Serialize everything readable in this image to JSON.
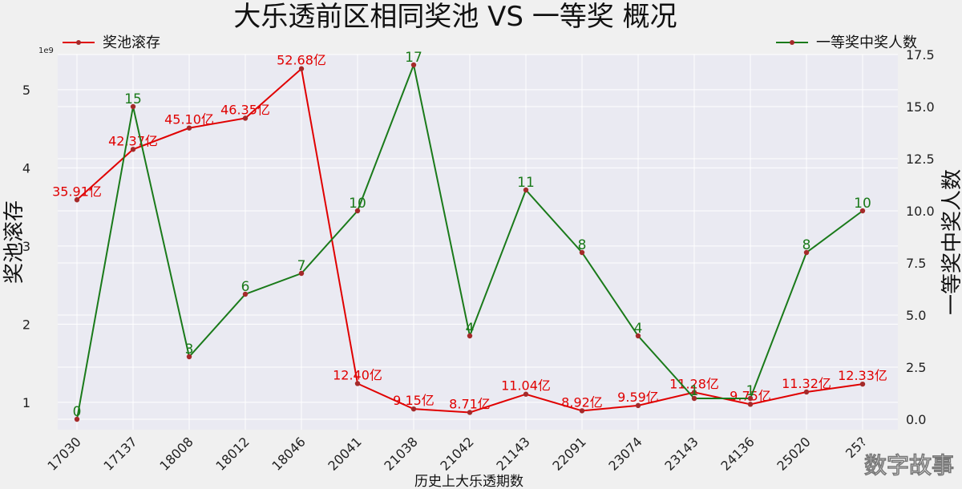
{
  "chart_data": {
    "type": "line",
    "title": "大乐透前区相同奖池 VS 一等奖 概况",
    "xlabel": "历史上大乐透期数",
    "ylabel_left": "奖池滚存",
    "ylabel_right": "一等奖中奖人数",
    "left_scale_note": "1e9",
    "categories": [
      "17030",
      "17137",
      "18008",
      "18012",
      "18046",
      "20041",
      "21038",
      "21042",
      "21143",
      "22091",
      "23074",
      "23143",
      "24136",
      "25020",
      "25?"
    ],
    "ylim_left": [
      0.65,
      5.45
    ],
    "ylim_right": [
      -0.5,
      17.5
    ],
    "left_ticks": [
      1,
      2,
      3,
      4,
      5
    ],
    "right_ticks": [
      "0.0",
      "2.5",
      "5.0",
      "7.5",
      "10.0",
      "12.5",
      "15.0",
      "17.5"
    ],
    "grid": true,
    "series": [
      {
        "name": "奖池滚存",
        "axis": "left",
        "color": "#e00000",
        "values": [
          3.591,
          4.237,
          4.51,
          4.635,
          5.268,
          1.24,
          0.915,
          0.871,
          1.104,
          0.892,
          0.959,
          1.128,
          0.975,
          1.132,
          1.233
        ],
        "labels": [
          "35.91亿",
          "42.37亿",
          "45.10亿",
          "46.35亿",
          "52.68亿",
          "12.40亿",
          "9.15亿",
          "8.71亿",
          "11.04亿",
          "8.92亿",
          "9.59亿",
          "11.28亿",
          "9.75亿",
          "11.32亿",
          "12.33亿"
        ]
      },
      {
        "name": "一等奖中奖人数",
        "axis": "right",
        "color": "#1a7a1a",
        "values": [
          0,
          15,
          3,
          6,
          7,
          10,
          17,
          4,
          11,
          8,
          4,
          1,
          1,
          8,
          10
        ],
        "labels": [
          "0",
          "15",
          "3",
          "6",
          "7",
          "10",
          "17",
          "4",
          "11",
          "8",
          "4",
          "1",
          "1",
          "8",
          "10"
        ]
      }
    ],
    "legend": {
      "left": "top-left",
      "right": "top-right"
    }
  },
  "watermark": "数字故事"
}
